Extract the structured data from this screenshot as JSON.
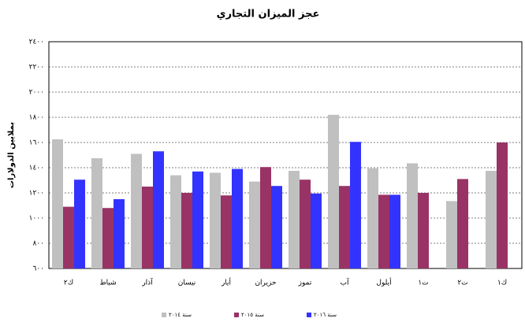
{
  "chart_data": {
    "type": "bar",
    "title": "عجز الميزان التجاري",
    "y_label": "بملايين الدولارات",
    "categories": [
      "ك٢",
      "شباط",
      "آذار",
      "نيسان",
      "أيار",
      "حزيران",
      "تموز",
      "آب",
      "أيلول",
      "ت١",
      "ت٢",
      "ك١"
    ],
    "series": [
      {
        "name": "سنة ٢٠١٤",
        "color": "#c0c0c0",
        "values": [
          1625,
          1475,
          1510,
          1340,
          1360,
          1290,
          1375,
          1820,
          1395,
          1435,
          1135,
          1375
        ]
      },
      {
        "name": "سنة ٢٠١٥",
        "color": "#993366",
        "values": [
          1090,
          1080,
          1250,
          1200,
          1180,
          1405,
          1305,
          1255,
          1185,
          1200,
          1310,
          1600
        ]
      },
      {
        "name": "سنة ٢٠١٦",
        "color": "#3333ff",
        "values": [
          1305,
          1150,
          1530,
          1370,
          1390,
          1255,
          1195,
          1605,
          1185,
          null,
          null,
          null
        ]
      }
    ],
    "ylim": [
      600,
      2400
    ],
    "yticks": [
      {
        "value": 600,
        "label": "٦٠٠"
      },
      {
        "value": 800,
        "label": "٨٠٠"
      },
      {
        "value": 1000,
        "label": "١٠٠٠"
      },
      {
        "value": 1200,
        "label": "١٢٠٠"
      },
      {
        "value": 1400,
        "label": "١٤٠٠"
      },
      {
        "value": 1600,
        "label": "١٦٠٠"
      },
      {
        "value": 1800,
        "label": "١٨٠٠"
      },
      {
        "value": 2000,
        "label": "٢٠٠٠"
      },
      {
        "value": 2200,
        "label": "٢٢٠٠"
      },
      {
        "value": 2400,
        "label": "٢٤٠٠"
      }
    ],
    "grid": true,
    "legend": "bottom"
  }
}
